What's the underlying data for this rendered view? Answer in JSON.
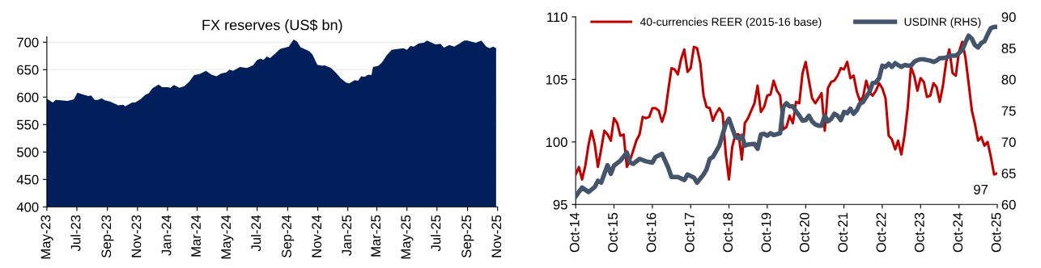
{
  "chart_data": [
    {
      "type": "area",
      "title": "FX reserves (US$ bn)",
      "x": [
        "2023-05-01",
        "2023-05-13",
        "2023-05-19",
        "2023-05-30",
        "2023-06-12",
        "2023-06-25",
        "2023-07-02",
        "2023-07-13",
        "2023-07-24",
        "2023-07-30",
        "2023-08-06",
        "2023-08-13",
        "2023-08-20",
        "2023-08-27",
        "2023-09-06",
        "2023-09-16",
        "2023-09-23",
        "2023-10-03",
        "2023-10-07",
        "2023-10-21",
        "2023-10-27",
        "2023-11-07",
        "2023-11-17",
        "2023-11-24",
        "2023-12-01",
        "2023-12-14",
        "2023-12-21",
        "2024-01-01",
        "2024-01-07",
        "2024-01-14",
        "2024-01-25",
        "2024-02-04",
        "2024-02-14",
        "2024-02-24",
        "2024-03-06",
        "2024-03-19",
        "2024-03-30",
        "2024-04-09",
        "2024-04-19",
        "2024-04-29",
        "2024-05-06",
        "2024-05-13",
        "2024-05-27",
        "2024-06-10",
        "2024-06-23",
        "2024-06-30",
        "2024-07-07",
        "2024-07-14",
        "2024-07-21",
        "2024-07-27",
        "2024-08-07",
        "2024-08-17",
        "2024-08-27",
        "2024-09-03",
        "2024-09-13",
        "2024-09-20",
        "2024-09-27",
        "2024-10-07",
        "2024-10-14",
        "2024-10-21",
        "2024-10-31",
        "2024-11-11",
        "2024-11-14",
        "2024-11-28",
        "2024-12-08",
        "2024-12-18",
        "2024-12-29",
        "2025-01-04",
        "2025-01-15",
        "2025-01-22",
        "2025-01-28",
        "2025-02-04",
        "2025-02-11",
        "2025-02-18",
        "2025-02-21",
        "2025-03-04",
        "2025-03-11",
        "2025-03-21",
        "2025-03-31",
        "2025-04-14",
        "2025-04-24",
        "2025-05-01",
        "2025-05-08",
        "2025-05-15",
        "2025-05-25",
        "2025-06-04",
        "2025-06-11",
        "2025-06-18",
        "2025-06-28",
        "2025-07-08",
        "2025-07-15",
        "2025-07-26",
        "2025-08-05",
        "2025-08-15",
        "2025-08-25",
        "2025-09-01",
        "2025-09-08",
        "2025-09-18",
        "2025-09-29",
        "2025-10-09",
        "2025-10-16",
        "2025-10-23",
        "2025-10-29"
      ],
      "series": [
        {
          "color": "#001f5b",
          "values": [
            597,
            590,
            595,
            594,
            593,
            596,
            608,
            605,
            602,
            603,
            595,
            595,
            598,
            594,
            592,
            588,
            585,
            586,
            583,
            590,
            590,
            596,
            604,
            607,
            616,
            623,
            618,
            618,
            617,
            622,
            617,
            620,
            628,
            640,
            642,
            648,
            641,
            638,
            643,
            645,
            650,
            648,
            655,
            653,
            658,
            667,
            670,
            668,
            674,
            671,
            680,
            688,
            690,
            692,
            705,
            701,
            691,
            687,
            684,
            678,
            659,
            657,
            658,
            653,
            644,
            634,
            626,
            625,
            631,
            630,
            638,
            637,
            641,
            640,
            655,
            657,
            663,
            676,
            686,
            688,
            689,
            686,
            693,
            692,
            698,
            699,
            703,
            700,
            696,
            697,
            690,
            695,
            692,
            697,
            703,
            703,
            701,
            699,
            703,
            692,
            689,
            692,
            689
          ]
        }
      ],
      "xlim": [
        "2023-05-01",
        "2025-11-01"
      ],
      "xticks": [
        {
          "value": "2023-05-01",
          "label": "May-23"
        },
        {
          "value": "2023-07-01",
          "label": "Jul-23"
        },
        {
          "value": "2023-09-01",
          "label": "Sep-23"
        },
        {
          "value": "2023-11-01",
          "label": "Nov-23"
        },
        {
          "value": "2024-01-01",
          "label": "Jan-24"
        },
        {
          "value": "2024-03-01",
          "label": "Mar-24"
        },
        {
          "value": "2024-05-01",
          "label": "May-24"
        },
        {
          "value": "2024-07-01",
          "label": "Jul-24"
        },
        {
          "value": "2024-09-01",
          "label": "Sep-24"
        },
        {
          "value": "2024-11-01",
          "label": "Nov-24"
        },
        {
          "value": "2025-01-01",
          "label": "Jan-25"
        },
        {
          "value": "2025-03-01",
          "label": "Mar-25"
        },
        {
          "value": "2025-05-01",
          "label": "May-25"
        },
        {
          "value": "2025-07-01",
          "label": "Jul-25"
        },
        {
          "value": "2025-09-01",
          "label": "Sep-25"
        },
        {
          "value": "2025-11-01",
          "label": "Nov-25"
        }
      ],
      "ylim": [
        400,
        710
      ],
      "yticks": [
        400,
        450,
        500,
        550,
        600,
        650,
        700
      ],
      "grid": "y"
    },
    {
      "type": "line",
      "series": [
        {
          "name": "40-currencies REER (2015-16 base)",
          "color": "#c00000",
          "x": [
            "2014-10",
            "2014-11",
            "2014-12",
            "2015-01",
            "2015-02",
            "2015-03",
            "2015-04",
            "2015-05",
            "2015-06",
            "2015-07",
            "2015-08",
            "2015-09",
            "2015-10",
            "2015-11",
            "2015-12",
            "2016-01",
            "2016-02",
            "2016-03",
            "2016-04",
            "2016-05",
            "2016-06",
            "2016-07",
            "2016-08",
            "2016-09",
            "2016-10",
            "2016-11",
            "2016-12",
            "2017-01",
            "2017-02",
            "2017-03",
            "2017-04",
            "2017-05",
            "2017-06",
            "2017-07",
            "2017-08",
            "2017-09",
            "2017-10",
            "2017-11",
            "2017-12",
            "2018-01",
            "2018-02",
            "2018-03",
            "2018-04",
            "2018-05",
            "2018-06",
            "2018-07",
            "2018-08",
            "2018-09",
            "2018-10",
            "2018-11",
            "2018-12",
            "2019-01",
            "2019-02",
            "2019-03",
            "2019-04",
            "2019-05",
            "2019-06",
            "2019-07",
            "2019-08",
            "2019-09",
            "2019-10",
            "2019-11",
            "2019-12",
            "2020-01",
            "2020-02",
            "2020-03",
            "2020-04",
            "2020-05",
            "2020-06",
            "2020-07",
            "2020-08",
            "2020-09",
            "2020-10",
            "2020-11",
            "2020-12",
            "2021-01",
            "2021-02",
            "2021-03",
            "2021-04",
            "2021-05",
            "2021-06",
            "2021-07",
            "2021-08",
            "2021-09",
            "2021-10",
            "2021-11",
            "2021-12",
            "2022-01",
            "2022-02",
            "2022-03",
            "2022-04",
            "2022-05",
            "2022-06",
            "2022-07",
            "2022-08",
            "2022-09",
            "2022-10",
            "2022-11",
            "2022-12",
            "2023-01",
            "2023-02",
            "2023-03",
            "2023-04",
            "2023-05",
            "2023-06",
            "2023-07",
            "2023-08",
            "2023-09",
            "2023-10",
            "2023-11",
            "2023-12",
            "2024-01",
            "2024-02",
            "2024-03",
            "2024-04",
            "2024-05",
            "2024-06",
            "2024-07",
            "2024-08",
            "2024-09",
            "2024-10",
            "2024-11",
            "2024-12",
            "2025-01",
            "2025-02",
            "2025-03",
            "2025-04",
            "2025-05",
            "2025-06",
            "2025-07",
            "2025-08",
            "2025-09",
            "2025-10"
          ],
          "values": [
            97.4,
            98.0,
            97.0,
            98.1,
            99.8,
            100.9,
            99.8,
            98.0,
            99.4,
            100.9,
            100.6,
            100.1,
            101.9,
            101.5,
            100.5,
            100.6,
            98.0,
            98.5,
            99.3,
            100.1,
            100.6,
            102.0,
            101.9,
            102.0,
            102.7,
            102.7,
            102.5,
            101.6,
            102.4,
            104.1,
            105.9,
            105.8,
            105.4,
            106.6,
            107.4,
            105.6,
            105.9,
            107.6,
            107.5,
            106.3,
            103.7,
            102.8,
            102.7,
            101.7,
            102.3,
            102.7,
            102.3,
            99.0,
            97.0,
            99.6,
            100.6,
            100.6,
            98.6,
            101.5,
            101.9,
            102.5,
            103.1,
            104.5,
            102.4,
            102.8,
            103.7,
            103.8,
            104.9,
            104.1,
            103.7,
            101.0,
            101.2,
            102.1,
            101.5,
            103.2,
            103.1,
            105.5,
            106.4,
            104.9,
            103.5,
            103.1,
            103.5,
            103.9,
            100.9,
            104.3,
            104.8,
            104.9,
            105.3,
            105.9,
            105.8,
            106.4,
            105.1,
            105.3,
            104.0,
            103.3,
            103.6,
            104.9,
            104.0,
            103.7,
            104.1,
            104.7,
            104.3,
            103.5,
            100.5,
            100.2,
            99.4,
            100.1,
            99.0,
            100.5,
            102.8,
            106.0,
            105.3,
            104.1,
            105.1,
            104.8,
            103.6,
            103.7,
            104.7,
            104.4,
            103.2,
            104.5,
            106.4,
            107.4,
            105.5,
            105.3,
            107.2,
            108.0,
            106.8,
            104.7,
            102.5,
            101.5,
            100.1,
            100.4,
            99.7,
            100.0,
            98.8,
            97.4,
            97.5
          ]
        },
        {
          "name": "USDINR (RHS)",
          "color": "#44546a",
          "axis": "y2",
          "x": [
            "2014-10",
            "2014-12",
            "2015-02",
            "2015-04",
            "2015-05",
            "2015-06",
            "2015-08",
            "2015-09",
            "2015-10",
            "2015-12",
            "2016-02",
            "2016-03",
            "2016-04",
            "2016-06",
            "2016-08",
            "2016-10",
            "2016-11",
            "2017-01",
            "2017-03",
            "2017-04",
            "2017-06",
            "2017-08",
            "2017-09",
            "2017-11",
            "2017-12",
            "2018-02",
            "2018-03",
            "2018-04",
            "2018-05",
            "2018-07",
            "2018-09",
            "2018-10",
            "2018-12",
            "2019-01",
            "2019-02",
            "2019-03",
            "2019-04",
            "2019-06",
            "2019-07",
            "2019-08",
            "2019-09",
            "2019-10",
            "2019-11",
            "2019-12",
            "2020-02",
            "2020-03",
            "2020-04",
            "2020-05",
            "2020-06",
            "2020-07",
            "2020-08",
            "2020-09",
            "2020-10",
            "2020-11",
            "2020-12",
            "2021-01",
            "2021-02",
            "2021-03",
            "2021-04",
            "2021-05",
            "2021-06",
            "2021-07",
            "2021-08",
            "2021-09",
            "2021-10",
            "2021-11",
            "2021-12",
            "2022-01",
            "2022-02",
            "2022-03",
            "2022-04",
            "2022-05",
            "2022-06",
            "2022-07",
            "2022-08",
            "2022-09",
            "2022-10",
            "2022-11",
            "2022-12",
            "2023-01",
            "2023-02",
            "2023-03",
            "2023-04",
            "2023-05",
            "2023-06",
            "2023-07",
            "2023-08",
            "2023-09",
            "2023-10",
            "2023-11",
            "2023-12",
            "2024-01",
            "2024-02",
            "2024-03",
            "2024-04",
            "2024-05",
            "2024-06",
            "2024-07",
            "2024-08",
            "2024-09",
            "2024-10",
            "2024-11",
            "2024-12",
            "2025-01",
            "2025-02",
            "2025-03",
            "2025-04",
            "2025-05",
            "2025-06",
            "2025-07",
            "2025-08",
            "2025-09",
            "2025-10"
          ],
          "values": [
            61.3,
            62.7,
            62.0,
            62.8,
            63.8,
            63.5,
            66.3,
            64.9,
            66.2,
            67.0,
            68.3,
            66.7,
            66.5,
            67.3,
            66.9,
            66.7,
            67.6,
            68.1,
            65.9,
            64.4,
            64.4,
            63.9,
            64.8,
            64.3,
            63.5,
            64.8,
            65.6,
            67.3,
            67.6,
            69.4,
            72.9,
            73.7,
            70.8,
            70.6,
            71.0,
            69.4,
            69.6,
            69.7,
            68.9,
            71.2,
            71.3,
            71.0,
            71.4,
            71.1,
            71.4,
            75.6,
            76.2,
            75.7,
            75.7,
            74.9,
            74.2,
            73.4,
            73.5,
            74.2,
            73.3,
            72.8,
            72.6,
            72.6,
            74.2,
            73.3,
            73.7,
            74.5,
            74.2,
            73.5,
            74.8,
            74.6,
            75.3,
            74.5,
            75.1,
            76.1,
            76.4,
            77.2,
            78.0,
            79.4,
            79.5,
            80.2,
            82.2,
            82.0,
            82.5,
            82.0,
            82.6,
            82.3,
            82.0,
            82.3,
            82.2,
            82.2,
            82.8,
            83.1,
            83.2,
            83.2,
            83.1,
            83.0,
            82.8,
            83.0,
            83.4,
            83.4,
            83.5,
            83.8,
            83.8,
            83.8,
            84.2,
            84.7,
            85.9,
            87.0,
            86.5,
            85.5,
            85.1,
            85.8,
            86.1,
            87.2,
            88.2,
            88.4,
            88.4
          ]
        }
      ],
      "xlim": [
        "2014-10",
        "2025-10"
      ],
      "xticks": [
        {
          "value": "2014-10",
          "label": "Oct-14"
        },
        {
          "value": "2015-10",
          "label": "Oct-15"
        },
        {
          "value": "2016-10",
          "label": "Oct-16"
        },
        {
          "value": "2017-10",
          "label": "Oct-17"
        },
        {
          "value": "2018-10",
          "label": "Oct-18"
        },
        {
          "value": "2019-10",
          "label": "Oct-19"
        },
        {
          "value": "2020-10",
          "label": "Oct-20"
        },
        {
          "value": "2021-10",
          "label": "Oct-21"
        },
        {
          "value": "2022-10",
          "label": "Oct-22"
        },
        {
          "value": "2023-10",
          "label": "Oct-23"
        },
        {
          "value": "2024-10",
          "label": "Oct-24"
        },
        {
          "value": "2025-10",
          "label": "Oct-25"
        }
      ],
      "ylim": [
        95,
        110
      ],
      "yticks": [
        95,
        100,
        105,
        110
      ],
      "y2lim": [
        60,
        90
      ],
      "y2ticks": [
        60,
        65,
        70,
        75,
        80,
        85,
        90
      ],
      "legend": "top",
      "annotations": [
        {
          "text": "97",
          "x": "2025-10",
          "y": 97.5
        }
      ]
    }
  ]
}
